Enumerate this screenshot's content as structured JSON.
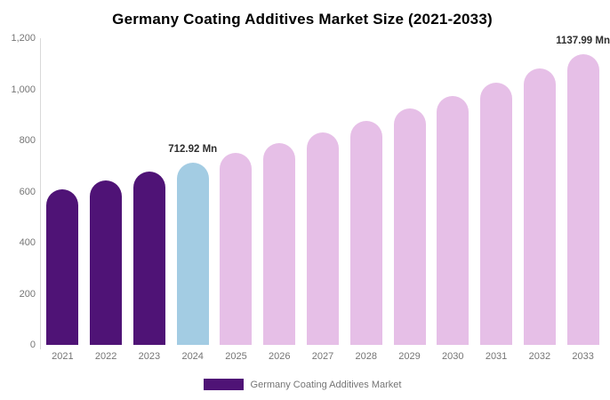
{
  "chart_data": {
    "type": "bar",
    "title": "Germany Coating Additives Market Size (2021-2033)",
    "value_unit": "Mn",
    "categories": [
      "2021",
      "2022",
      "2023",
      "2024",
      "2025",
      "2026",
      "2027",
      "2028",
      "2029",
      "2030",
      "2031",
      "2032",
      "2033"
    ],
    "values": [
      610,
      643,
      677,
      712.92,
      751,
      791,
      833,
      878,
      925,
      974,
      1026,
      1081,
      1137.99
    ],
    "ylim": [
      0,
      1200
    ],
    "y_ticks": [
      {
        "value": 0,
        "label": "0"
      },
      {
        "value": 200,
        "label": "200"
      },
      {
        "value": 400,
        "label": "400"
      },
      {
        "value": 600,
        "label": "600"
      },
      {
        "value": 800,
        "label": "800"
      },
      {
        "value": 1000,
        "label": "1,000"
      },
      {
        "value": 1200,
        "label": "1,200"
      }
    ],
    "bar_colors": [
      "#4F1376",
      "#4F1376",
      "#4F1376",
      "#A3CCE3",
      "#E6BFE7",
      "#E6BFE7",
      "#E6BFE7",
      "#E6BFE7",
      "#E6BFE7",
      "#E6BFE7",
      "#E6BFE7",
      "#E6BFE7",
      "#E6BFE7"
    ],
    "point_labels": [
      {
        "category": "2024",
        "text": "712.92 Mn"
      },
      {
        "category": "2033",
        "text": "1137.99 Mn"
      }
    ],
    "grid": false,
    "legend_position": "bottom",
    "legend": [
      {
        "label": "Germany Coating Additives Market",
        "color": "#4F1376"
      }
    ]
  },
  "colors": {
    "historical_bar": "#4F1376",
    "highlight_bar": "#A3CCE3",
    "forecast_bar": "#E6BFE7",
    "axis_text": "#757575",
    "axis_line": "#d9d9d9",
    "value_label_text": "#2e2e2e",
    "background": "#ffffff"
  }
}
